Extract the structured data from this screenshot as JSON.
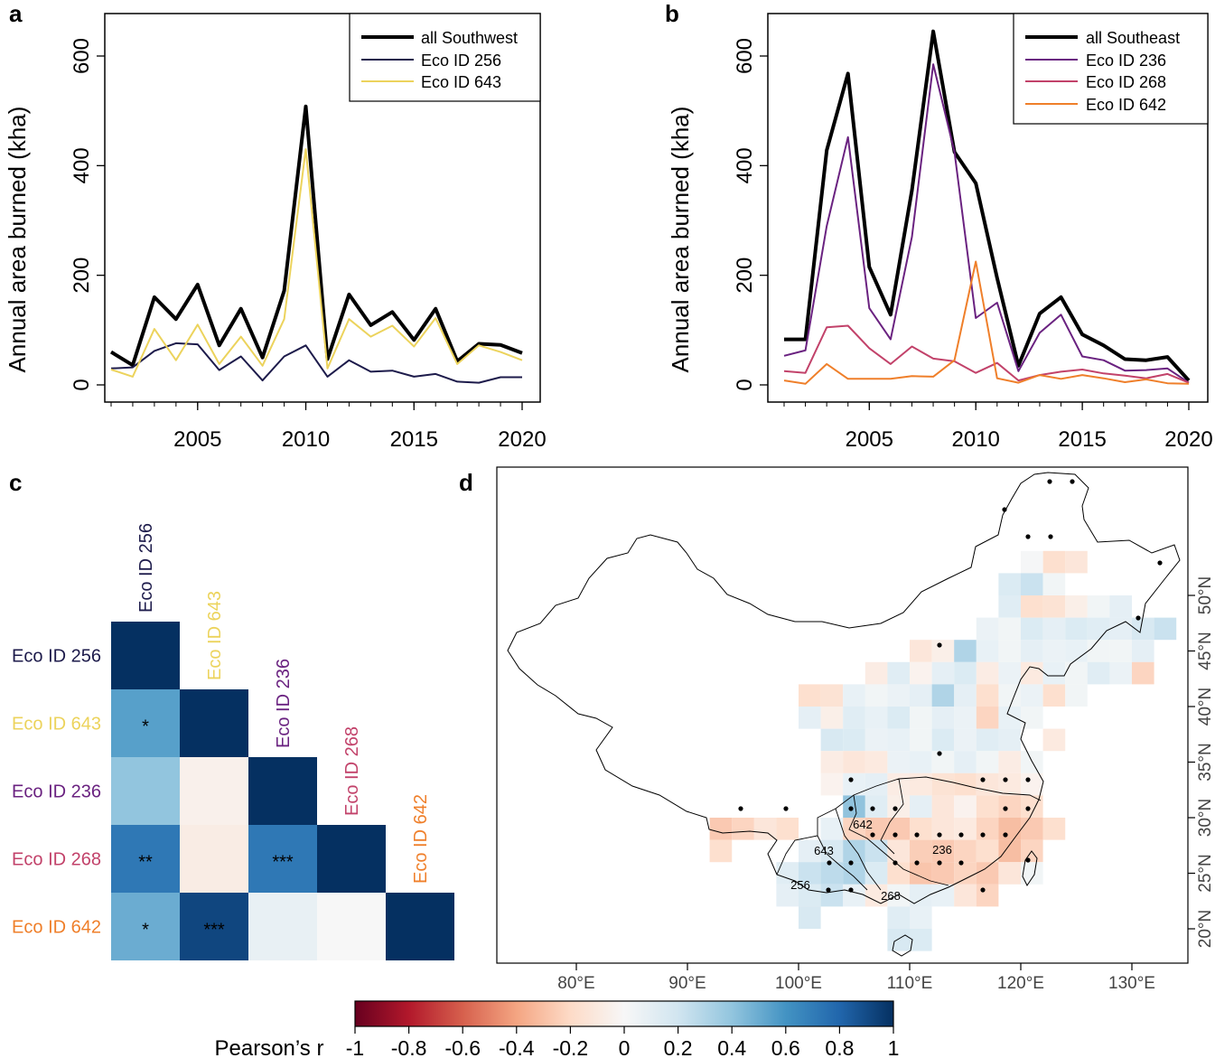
{
  "colors": {
    "all_southwest": "#000000",
    "all_southeast": "#000000",
    "eco256": "#1d1b4b",
    "eco643": "#ecd35c",
    "eco236": "#6a2280",
    "eco268": "#c2426a",
    "eco642": "#ef7f2a"
  },
  "chart_data": [
    {
      "panel": "a",
      "type": "line",
      "ylabel": "Annual area burned (kha)",
      "xlabel": "",
      "xlim": [
        2001,
        2020
      ],
      "ylim": [
        0,
        600
      ],
      "xticks": [
        "2005",
        "2010",
        "2015",
        "2020"
      ],
      "yticks": [
        "0",
        "200",
        "400",
        "600"
      ],
      "legend": "top-right",
      "x": [
        2001,
        2002,
        2003,
        2004,
        2005,
        2006,
        2007,
        2008,
        2009,
        2010,
        2011,
        2012,
        2013,
        2014,
        2015,
        2016,
        2017,
        2018,
        2019,
        2020
      ],
      "series": [
        {
          "name": "all Southwest",
          "key": "all_southwest",
          "values": [
            60,
            36,
            160,
            120,
            183,
            72,
            139,
            50,
            172,
            508,
            47,
            165,
            109,
            133,
            82,
            139,
            43,
            75,
            73,
            58
          ]
        },
        {
          "name": "Eco ID 256",
          "key": "eco256",
          "values": [
            30,
            32,
            62,
            76,
            74,
            27,
            52,
            8,
            52,
            72,
            15,
            45,
            24,
            26,
            15,
            20,
            6,
            4,
            14,
            14
          ]
        },
        {
          "name": "Eco ID 643",
          "key": "eco643",
          "values": [
            28,
            15,
            102,
            45,
            110,
            38,
            88,
            35,
            120,
            430,
            30,
            120,
            88,
            108,
            70,
            122,
            38,
            72,
            60,
            45
          ]
        }
      ]
    },
    {
      "panel": "b",
      "type": "line",
      "ylabel": "Annual area burned (kha)",
      "xlabel": "",
      "xlim": [
        2001,
        2020
      ],
      "ylim": [
        0,
        600
      ],
      "xticks": [
        "2005",
        "2010",
        "2015",
        "2020"
      ],
      "yticks": [
        "0",
        "200",
        "400",
        "600"
      ],
      "legend": "top-right",
      "x": [
        2001,
        2002,
        2003,
        2004,
        2005,
        2006,
        2007,
        2008,
        2009,
        2010,
        2011,
        2012,
        2013,
        2014,
        2015,
        2016,
        2017,
        2018,
        2019,
        2020
      ],
      "series": [
        {
          "name": "all Southeast",
          "key": "all_southeast",
          "values": [
            83,
            83,
            428,
            568,
            215,
            128,
            355,
            645,
            425,
            368,
            195,
            35,
            130,
            160,
            92,
            72,
            47,
            45,
            51,
            8
          ]
        },
        {
          "name": "Eco ID 236",
          "key": "eco236",
          "values": [
            53,
            63,
            290,
            452,
            140,
            83,
            270,
            585,
            425,
            122,
            150,
            25,
            95,
            128,
            52,
            45,
            26,
            27,
            30,
            4
          ]
        },
        {
          "name": "Eco ID 268",
          "key": "eco268",
          "values": [
            25,
            22,
            105,
            108,
            67,
            38,
            70,
            48,
            43,
            22,
            40,
            8,
            18,
            24,
            28,
            21,
            17,
            12,
            20,
            4
          ]
        },
        {
          "name": "Eco ID 642",
          "key": "eco642",
          "values": [
            8,
            2,
            38,
            11,
            11,
            11,
            16,
            15,
            45,
            225,
            12,
            4,
            18,
            11,
            18,
            12,
            5,
            10,
            3,
            2
          ]
        }
      ]
    },
    {
      "panel": "c",
      "type": "heatmap",
      "labels": [
        "Eco ID 256",
        "Eco ID 643",
        "Eco ID 236",
        "Eco ID 268",
        "Eco ID 642"
      ],
      "label_keys": [
        "eco256",
        "eco643",
        "eco236",
        "eco268",
        "eco642"
      ],
      "matrix": [
        [
          1.0,
          null,
          null,
          null,
          null
        ],
        [
          0.55,
          1.0,
          null,
          null,
          null
        ],
        [
          0.4,
          -0.05,
          1.0,
          null,
          null
        ],
        [
          0.72,
          -0.08,
          0.72,
          1.0,
          null
        ],
        [
          0.5,
          0.92,
          0.08,
          0.0,
          1.0
        ]
      ],
      "significance": [
        [
          "",
          "",
          "",
          "",
          ""
        ],
        [
          "*",
          "",
          "",
          "",
          ""
        ],
        [
          "",
          "",
          "",
          "",
          ""
        ],
        [
          "**",
          "",
          "***",
          "",
          ""
        ],
        [
          "*",
          "***",
          "",
          "",
          ""
        ]
      ]
    },
    {
      "panel": "d",
      "type": "heatmap",
      "lon_ticks": [
        "80°E",
        "90°E",
        "100°E",
        "110°E",
        "120°E",
        "130°E"
      ],
      "lat_ticks": [
        "20°N",
        "25°N",
        "30°N",
        "35°N",
        "40°N",
        "45°N",
        "50°N"
      ],
      "region_labels": [
        "642",
        "643",
        "236",
        "256",
        "268"
      ],
      "colorbar": {
        "label": "Pearson’s r",
        "ticks": [
          "-1",
          "-0.8",
          "-0.6",
          "-0.4",
          "-0.2",
          "0",
          "0.2",
          "0.4",
          "0.6",
          "0.8",
          "1"
        ],
        "range": [
          -1,
          1
        ]
      }
    }
  ],
  "panels": {
    "a": "a",
    "b": "b",
    "c": "c",
    "d": "d"
  }
}
